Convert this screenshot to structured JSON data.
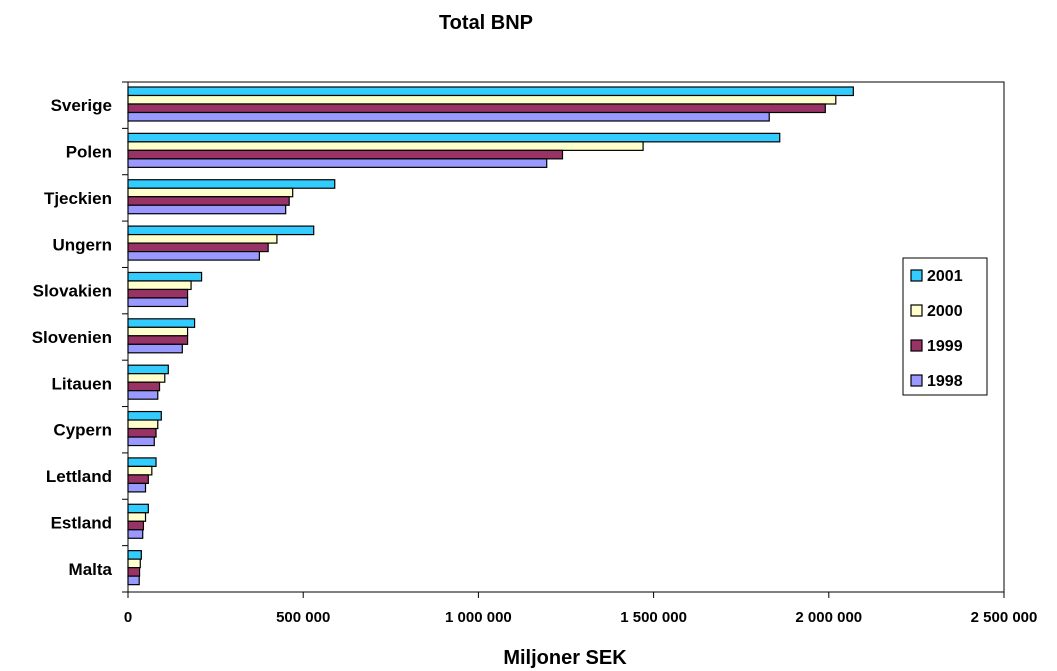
{
  "chart_data": {
    "type": "bar",
    "orientation": "horizontal",
    "title": "Total BNP",
    "xlabel": "Miljoner SEK",
    "ylabel": "",
    "xlim": [
      0,
      2500000
    ],
    "x_ticks": [
      0,
      500000,
      1000000,
      1500000,
      2000000,
      2500000
    ],
    "x_tick_labels": [
      "0",
      "500 000",
      "1 000 000",
      "1 500 000",
      "2 000 000",
      "2 500 000"
    ],
    "grid": false,
    "legend_position": "right",
    "categories": [
      "Sverige",
      "Polen",
      "Tjeckien",
      "Ungern",
      "Slovakien",
      "Slovenien",
      "Litauen",
      "Cypern",
      "Lettland",
      "Estland",
      "Malta"
    ],
    "series": [
      {
        "name": "2001",
        "color": "#33CCFF",
        "values": [
          2070000,
          1860000,
          590000,
          530000,
          210000,
          190000,
          115000,
          95000,
          80000,
          58000,
          38000
        ]
      },
      {
        "name": "2000",
        "color": "#FFFFCC",
        "values": [
          2020000,
          1470000,
          470000,
          425000,
          180000,
          170000,
          105000,
          85000,
          68000,
          50000,
          35000
        ]
      },
      {
        "name": "1999",
        "color": "#993366",
        "values": [
          1990000,
          1240000,
          460000,
          400000,
          170000,
          170000,
          90000,
          80000,
          58000,
          44000,
          33000
        ]
      },
      {
        "name": "1998",
        "color": "#9999FF",
        "values": [
          1830000,
          1195000,
          450000,
          375000,
          170000,
          155000,
          85000,
          75000,
          50000,
          42000,
          32000
        ]
      }
    ],
    "legend_order": [
      "2001",
      "2000",
      "1999",
      "1998"
    ]
  }
}
